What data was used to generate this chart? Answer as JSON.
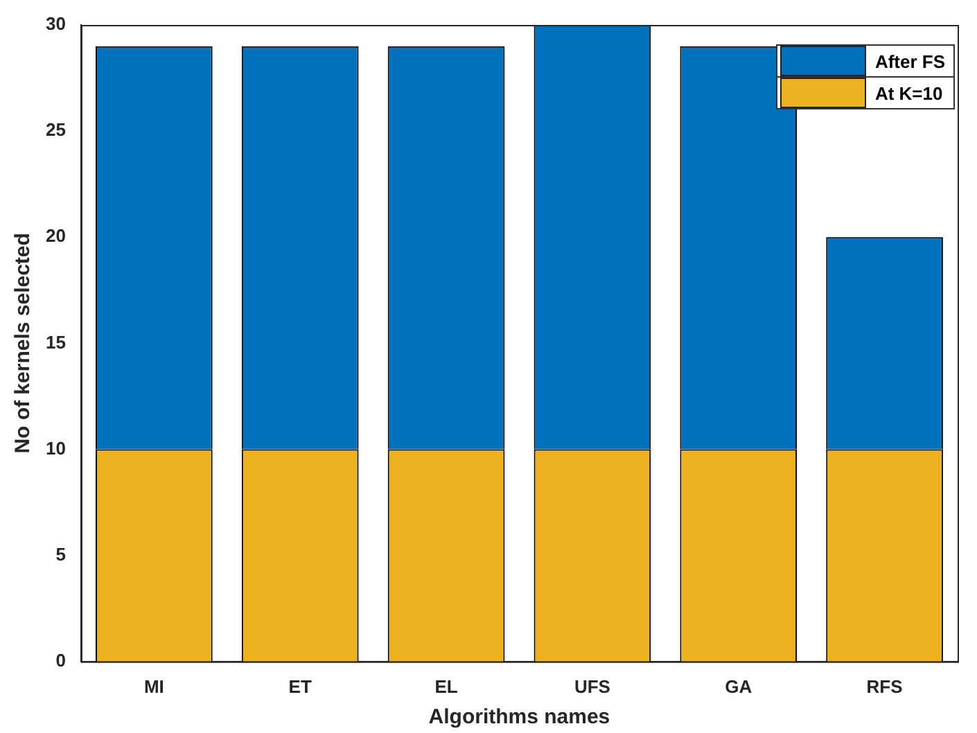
{
  "chart_data": {
    "type": "bar",
    "stacked": true,
    "xlabel": "Algorithms names",
    "ylabel": "No of kernels selected",
    "categories": [
      "MI",
      "ET",
      "EL",
      "UFS",
      "GA",
      "RFS"
    ],
    "series": [
      {
        "name": "At K=10",
        "color": "#edb120",
        "values": [
          10,
          10,
          10,
          10,
          10,
          10
        ]
      },
      {
        "name": "After FS",
        "color": "#0072bd",
        "values": [
          19,
          19,
          19,
          20,
          19,
          10
        ]
      }
    ],
    "ylim": [
      0,
      30
    ],
    "yticks": [
      0,
      5,
      10,
      15,
      20,
      25,
      30
    ],
    "grid": false,
    "legend": "top right"
  }
}
